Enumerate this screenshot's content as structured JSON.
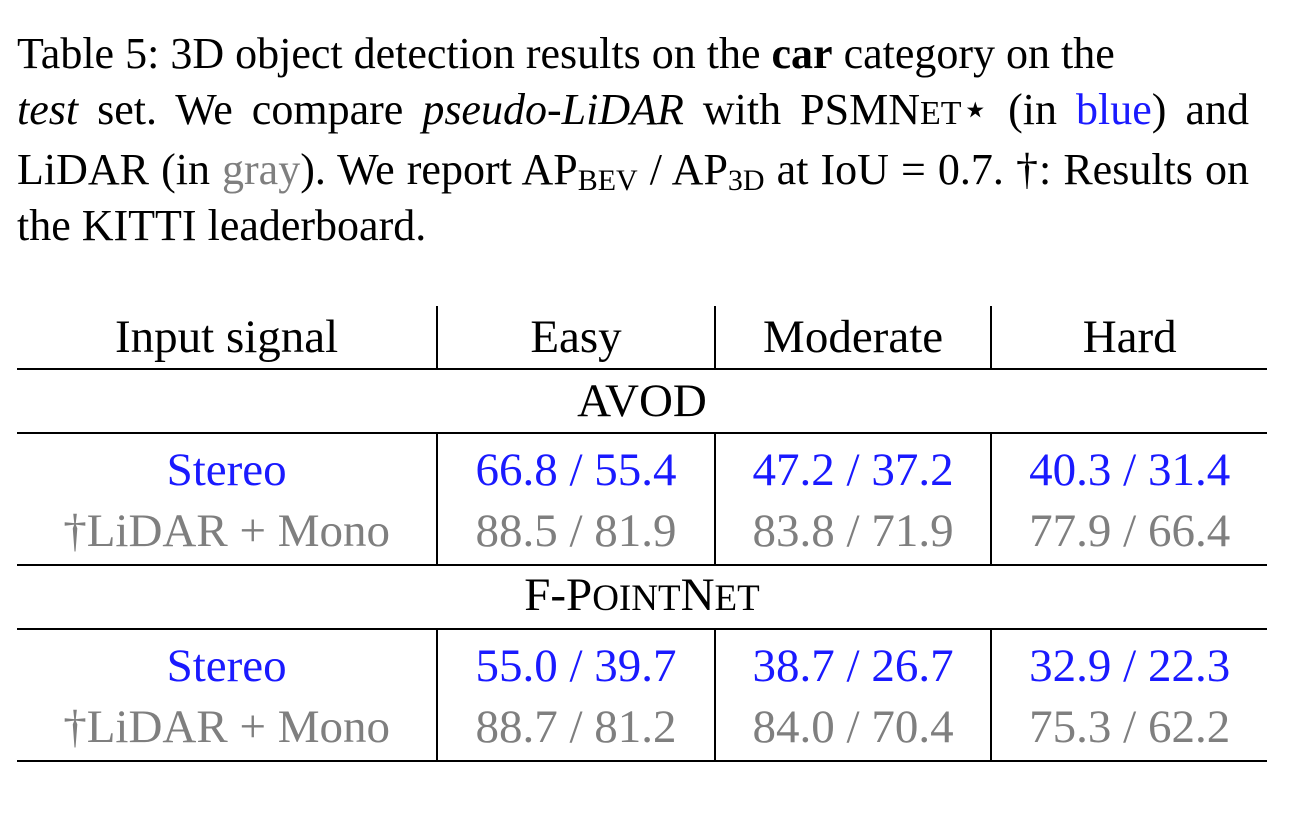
{
  "caption": {
    "label": "Table 5:",
    "t1": " 3D object detection results on the ",
    "bold_word": "car",
    "t2": " category on the ",
    "test_word": "test",
    "t3": " set.  We compare ",
    "pseudo_word": "pseudo-LiDAR",
    "t4": " with ",
    "psm_p": "PSMN",
    "psm_et": "ET",
    "psm_star": "⋆",
    "t5": " (in ",
    "blue_word": "blue",
    "t6": ") and LiDAR (in ",
    "gray_word": "gray",
    "t7": ").  We report AP",
    "bev_sub": "BEV",
    "t8": " / AP",
    "threed_sub": "3D",
    "t9": " at IoU = 0.7.  †: Results on the KITTI leaderboard."
  },
  "table": {
    "headers": [
      "Input signal",
      "Easy",
      "Moderate",
      "Hard"
    ],
    "sections": [
      {
        "title_parts": [
          "AVOD",
          "",
          "",
          ""
        ],
        "rows": [
          {
            "signal": "Stereo",
            "style": "blue",
            "values": [
              "66.8 / 55.4",
              "47.2 / 37.2",
              "40.3 / 31.4"
            ]
          },
          {
            "signal": "†LiDAR + Mono",
            "style": "gray",
            "values": [
              "88.5 / 81.9",
              "83.8 / 71.9",
              "77.9 / 66.4"
            ]
          }
        ]
      },
      {
        "title_parts": [
          "F-P",
          "OINT",
          "N",
          "ET"
        ],
        "rows": [
          {
            "signal": "Stereo",
            "style": "blue",
            "values": [
              "55.0 / 39.7",
              "38.7 / 26.7",
              "32.9 / 22.3"
            ]
          },
          {
            "signal": "†LiDAR + Mono",
            "style": "gray",
            "values": [
              "88.7 / 81.2",
              "84.0 / 70.4",
              "75.3 / 62.2"
            ]
          }
        ]
      }
    ]
  },
  "colors": {
    "blue": "#1a1aff",
    "gray": "#7f7f7f",
    "text": "#000000"
  }
}
